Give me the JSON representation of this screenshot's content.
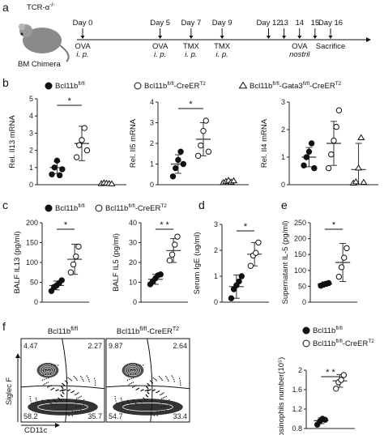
{
  "panel_letters": [
    "a",
    "b",
    "c",
    "d",
    "e",
    "f"
  ],
  "timeline": {
    "mouse_label": "TCR-α",
    "mouse_label_sup": "-/-",
    "chimera_label": "BM Chimera",
    "days": [
      {
        "day": "Day 0",
        "events": [
          "OVA",
          "i. p."
        ],
        "pos": 0
      },
      {
        "day": "Day 5",
        "events": [
          "OVA",
          "i. p."
        ],
        "pos": 5
      },
      {
        "day": "Day 7",
        "events": [
          "TMX",
          "i. p."
        ],
        "pos": 7
      },
      {
        "day": "Day 9",
        "events": [
          "TMX",
          "i. p."
        ],
        "pos": 9
      },
      {
        "day": "Day 12",
        "events": [],
        "pos": 12
      },
      {
        "day": "13",
        "events": [],
        "pos": 13
      },
      {
        "day": "14",
        "events": [
          "OVA",
          "nostril"
        ],
        "pos": 14
      },
      {
        "day": "15",
        "events": [],
        "pos": 15
      },
      {
        "day": "Day 16",
        "events": [
          "Sacrifice"
        ],
        "pos": 16
      }
    ]
  },
  "legend_b": [
    {
      "marker": "circle-filled",
      "text": "Bcl11b",
      "sup": "fl/fl"
    },
    {
      "marker": "circle-open",
      "text": "Bcl11b",
      "sup": "fl/fl",
      "suffix": "-CreER",
      "suffix_sup": "T2"
    },
    {
      "marker": "triangle-open",
      "text": "Bcl11b",
      "sup": "fl/fl",
      "suffix": "-Gata3",
      "suffix_sup": "fl/fl",
      "suffix2": "-CreER",
      "suffix2_sup": "T2"
    }
  ],
  "legend_c": [
    {
      "marker": "circle-filled",
      "text": "Bcl11b",
      "sup": "fl/fl"
    },
    {
      "marker": "circle-open",
      "text": "Bcl11b",
      "sup": "fl/fl",
      "suffix": "-CreER",
      "suffix_sup": "T2"
    }
  ],
  "legend_f": [
    {
      "marker": "circle-filled",
      "text": "Bcl11b",
      "sup": "fl/fl"
    },
    {
      "marker": "circle-open",
      "text": "Bcl11b",
      "sup": "fl/fl",
      "suffix": "-CreER",
      "suffix_sup": "T2"
    }
  ],
  "chart_data": [
    {
      "id": "b1",
      "type": "scatter",
      "ylabel": "Rel. Il13 mRNA",
      "ylim": [
        0,
        5
      ],
      "yticks": [
        0,
        1,
        2,
        3,
        4,
        5
      ],
      "groups": [
        {
          "marker": "circle-filled",
          "values": [
            0.6,
            1.0,
            1.4,
            0.55,
            0.9
          ],
          "mean": 1.0,
          "sd": 0.35
        },
        {
          "marker": "circle-open",
          "values": [
            1.6,
            2.3,
            2.6,
            3.3,
            2.0
          ],
          "mean": 2.4,
          "sd": 1.0
        },
        {
          "marker": "triangle-open",
          "values": [
            0.05,
            0.1,
            0.08,
            0.06,
            0.04
          ],
          "mean": 0.06,
          "sd": 0.03
        }
      ],
      "sig": [
        {
          "from": 0,
          "to": 1,
          "label": "*"
        }
      ]
    },
    {
      "id": "b2",
      "type": "scatter",
      "ylabel": "Rel. Il5 mRNA",
      "ylim": [
        0,
        4
      ],
      "yticks": [
        0,
        1,
        2,
        3,
        4
      ],
      "groups": [
        {
          "marker": "circle-filled",
          "values": [
            0.4,
            0.8,
            1.2,
            1.6,
            1.0
          ],
          "mean": 1.0,
          "sd": 0.45
        },
        {
          "marker": "circle-open",
          "values": [
            1.4,
            1.9,
            2.6,
            3.1,
            1.6
          ],
          "mean": 2.2,
          "sd": 0.8
        },
        {
          "marker": "triangle-open",
          "values": [
            0.1,
            0.15,
            0.2,
            0.12,
            0.18
          ],
          "mean": 0.15,
          "sd": 0.05
        }
      ],
      "sig": [
        {
          "from": 0,
          "to": 1,
          "label": "*"
        }
      ]
    },
    {
      "id": "b3",
      "type": "scatter",
      "ylabel": "Rel. Il4 mRNA",
      "ylim": [
        0,
        3
      ],
      "yticks": [
        0,
        1,
        2,
        3
      ],
      "groups": [
        {
          "marker": "circle-filled",
          "values": [
            0.7,
            1.0,
            1.2,
            1.5,
            0.6
          ],
          "mean": 1.0,
          "sd": 0.35
        },
        {
          "marker": "circle-open",
          "values": [
            0.6,
            1.1,
            1.6,
            2.1,
            2.7
          ],
          "mean": 1.5,
          "sd": 0.8
        },
        {
          "marker": "triangle-open",
          "values": [
            0.05,
            0.1,
            0.6,
            1.7,
            0.08
          ],
          "mean": 0.55,
          "sd": 0.95
        }
      ],
      "sig": []
    },
    {
      "id": "c1",
      "type": "scatter",
      "ylabel": "BALF IL13 (pg/ml)",
      "ylim": [
        0,
        200
      ],
      "yticks": [
        0,
        50,
        100,
        150,
        200
      ],
      "groups": [
        {
          "marker": "circle-filled",
          "values": [
            28,
            38,
            42,
            48,
            55
          ],
          "mean": 42,
          "sd": 11
        },
        {
          "marker": "circle-open",
          "values": [
            75,
            95,
            115,
            140
          ],
          "mean": 108,
          "sd": 38
        }
      ],
      "sig": [
        {
          "from": 0,
          "to": 1,
          "label": "*"
        }
      ]
    },
    {
      "id": "c2",
      "type": "scatter",
      "ylabel": "BALF IL5 (pg/ml)",
      "ylim": [
        0,
        40
      ],
      "yticks": [
        0,
        10,
        20,
        30,
        40
      ],
      "groups": [
        {
          "marker": "circle-filled",
          "values": [
            9,
            10.5,
            12,
            13.5,
            14
          ],
          "mean": 11.5,
          "sd": 2.5
        },
        {
          "marker": "circle-open",
          "values": [
            21,
            24,
            29,
            33
          ],
          "mean": 26,
          "sd": 6
        }
      ],
      "sig": [
        {
          "from": 0,
          "to": 1,
          "label": "* *"
        }
      ]
    },
    {
      "id": "d",
      "type": "scatter",
      "ylabel": "Serum IgE (ug/ml)",
      "ylim": [
        0,
        3
      ],
      "yticks": [
        0,
        1,
        2,
        3
      ],
      "groups": [
        {
          "marker": "circle-filled",
          "values": [
            0.15,
            0.5,
            0.65,
            0.8,
            1.0
          ],
          "mean": 0.6,
          "sd": 0.45
        },
        {
          "marker": "circle-open",
          "values": [
            1.4,
            1.8,
            1.9,
            2.3
          ],
          "mean": 1.85,
          "sd": 0.45
        }
      ],
      "sig": [
        {
          "from": 0,
          "to": 1,
          "label": "*"
        }
      ]
    },
    {
      "id": "e",
      "type": "scatter",
      "ylabel": "Supernatant IL-5 (pg/ml)",
      "ylim": [
        0,
        250
      ],
      "yticks": [
        0,
        50,
        100,
        150,
        200,
        250
      ],
      "groups": [
        {
          "marker": "circle-filled",
          "values": [
            52,
            55,
            58,
            60
          ],
          "mean": 57,
          "sd": 7
        },
        {
          "marker": "circle-open",
          "values": [
            80,
            110,
            140,
            170
          ],
          "mean": 125,
          "sd": 60
        }
      ],
      "sig": [
        {
          "from": 0,
          "to": 1,
          "label": "*"
        }
      ]
    },
    {
      "id": "f",
      "type": "scatter",
      "ylabel": "Eosinophils number(10⁵)",
      "ylim": [
        0.8,
        2.0
      ],
      "yticks": [
        0.8,
        1.2,
        1.6,
        2.0
      ],
      "groups": [
        {
          "marker": "circle-filled",
          "values": [
            0.88,
            0.95,
            1.0,
            0.98
          ],
          "mean": 0.96,
          "sd": 0.06
        },
        {
          "marker": "circle-open",
          "values": [
            1.62,
            1.75,
            1.8,
            1.9
          ],
          "mean": 1.78,
          "sd": 0.13
        }
      ],
      "sig": [
        {
          "from": 0,
          "to": 1,
          "label": "* *"
        }
      ]
    }
  ],
  "flow": {
    "y_axis_label": "Siglec F",
    "x_axis_label": "CD11c",
    "plots": [
      {
        "title": "Bcl11b",
        "title_sup": "fl/fl",
        "q_ul": "4.47",
        "q_ur": "2.27",
        "q_ll": "58.2",
        "q_lr": "35.7"
      },
      {
        "title": "Bcl11b",
        "title_sup": "fl/fl",
        "title_suffix": "-CreER",
        "title_suffix_sup": "T2",
        "q_ul": "9.87",
        "q_ur": "2.64",
        "q_ll": "54.7",
        "q_lr": "33.4"
      }
    ]
  }
}
